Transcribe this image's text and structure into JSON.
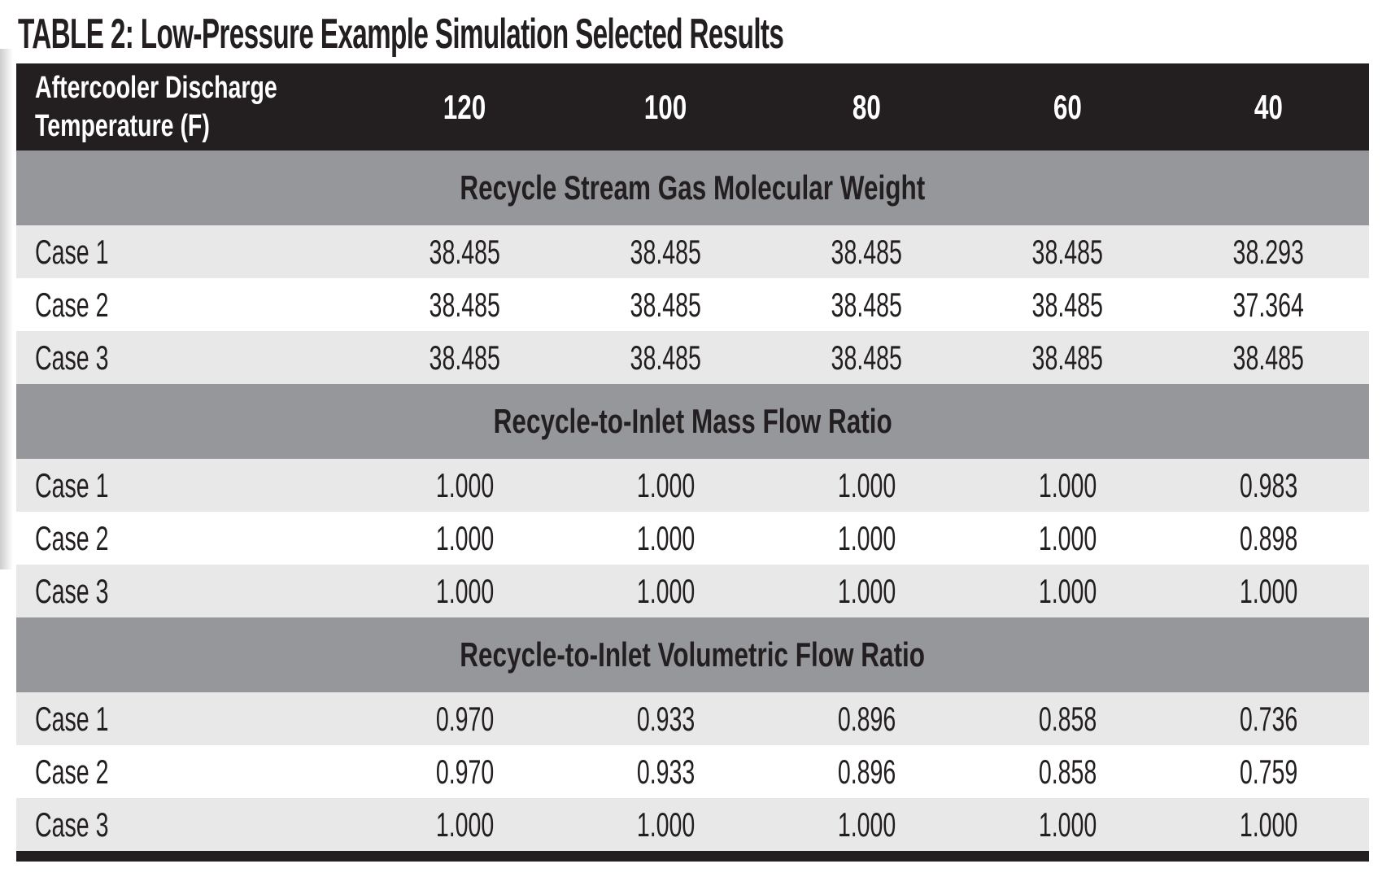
{
  "chart_data": {
    "type": "table",
    "title": "TABLE 2: Low-Pressure Example Simulation Selected Results",
    "header": {
      "label": "Aftercooler Discharge Temperature (F)",
      "label_line1": "Aftercooler Discharge",
      "label_line2": "Temperature (F)",
      "columns": [
        "120",
        "100",
        "80",
        "60",
        "40"
      ]
    },
    "sections": [
      {
        "title": "Recycle Stream Gas Molecular Weight",
        "rows": [
          {
            "label": "Case 1",
            "values": [
              "38.485",
              "38.485",
              "38.485",
              "38.485",
              "38.293"
            ]
          },
          {
            "label": "Case 2",
            "values": [
              "38.485",
              "38.485",
              "38.485",
              "38.485",
              "37.364"
            ]
          },
          {
            "label": "Case 3",
            "values": [
              "38.485",
              "38.485",
              "38.485",
              "38.485",
              "38.485"
            ]
          }
        ]
      },
      {
        "title": "Recycle-to-Inlet Mass Flow Ratio",
        "rows": [
          {
            "label": "Case 1",
            "values": [
              "1.000",
              "1.000",
              "1.000",
              "1.000",
              "0.983"
            ]
          },
          {
            "label": "Case 2",
            "values": [
              "1.000",
              "1.000",
              "1.000",
              "1.000",
              "0.898"
            ]
          },
          {
            "label": "Case 3",
            "values": [
              "1.000",
              "1.000",
              "1.000",
              "1.000",
              "1.000"
            ]
          }
        ]
      },
      {
        "title": "Recycle-to-Inlet Volumetric Flow Ratio",
        "rows": [
          {
            "label": "Case 1",
            "values": [
              "0.970",
              "0.933",
              "0.896",
              "0.858",
              "0.736"
            ]
          },
          {
            "label": "Case 2",
            "values": [
              "0.970",
              "0.933",
              "0.896",
              "0.858",
              "0.759"
            ]
          },
          {
            "label": "Case 3",
            "values": [
              "1.000",
              "1.000",
              "1.000",
              "1.000",
              "1.000"
            ]
          }
        ]
      }
    ],
    "layout": {
      "grid": "off",
      "legend": "none",
      "row_striping": [
        "shade",
        "plain",
        "shade"
      ]
    }
  },
  "colors": {
    "header_bg": "#231f20",
    "header_text": "#ffffff",
    "section_bg": "#96979a",
    "row_shade": "#e8e8e9",
    "row_plain": "#ffffff",
    "text": "#231f20",
    "page_bg": "#ffffff"
  }
}
